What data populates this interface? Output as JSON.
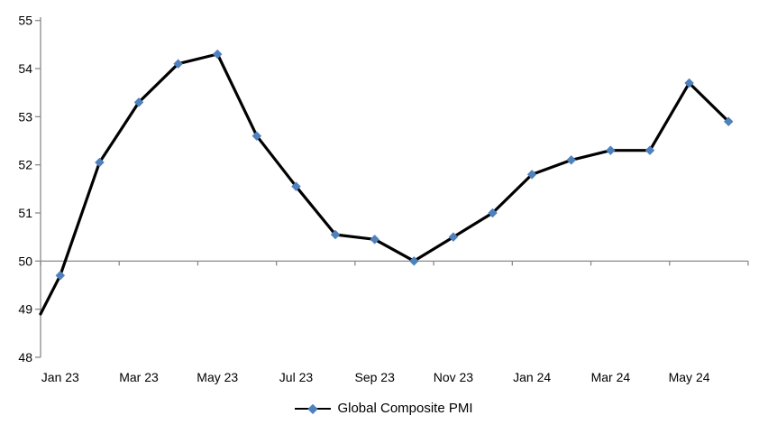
{
  "chart_data": {
    "type": "line",
    "title": "",
    "categories": [
      "Jan 23",
      "Feb 23",
      "Mar 23",
      "Apr 23",
      "May 23",
      "Jun 23",
      "Jul 23",
      "Aug 23",
      "Sep 23",
      "Oct 23",
      "Nov 23",
      "Dec 23",
      "Jan 24",
      "Feb 24",
      "Mar 24",
      "Apr 24",
      "May 24",
      "Jun 24"
    ],
    "series": [
      {
        "name": "Global Composite PMI",
        "values": [
          49.7,
          52.05,
          53.3,
          54.1,
          54.3,
          52.6,
          51.55,
          50.55,
          50.45,
          50.0,
          50.5,
          51.0,
          51.8,
          52.1,
          52.3,
          52.3,
          53.7,
          52.9
        ],
        "line_color": "#000000",
        "marker_color": "#4F81BD",
        "marker": "diamond"
      }
    ],
    "edge_entry_value": 48.9,
    "ylim": [
      48,
      55
    ],
    "yticks": [
      55,
      54,
      53,
      52,
      51,
      50,
      49,
      48
    ],
    "xtick_labels": [
      "Jan 23",
      "Mar 23",
      "May 23",
      "Jul 23",
      "Sep 23",
      "Nov 23",
      "Jan 24",
      "Mar 24",
      "May 24"
    ],
    "xtick_every": 2,
    "baseline_value": 50,
    "axis_color": "#8A8A8A",
    "grid": false,
    "legend_position": "bottom"
  },
  "legend": {
    "label": "Global Composite PMI"
  }
}
